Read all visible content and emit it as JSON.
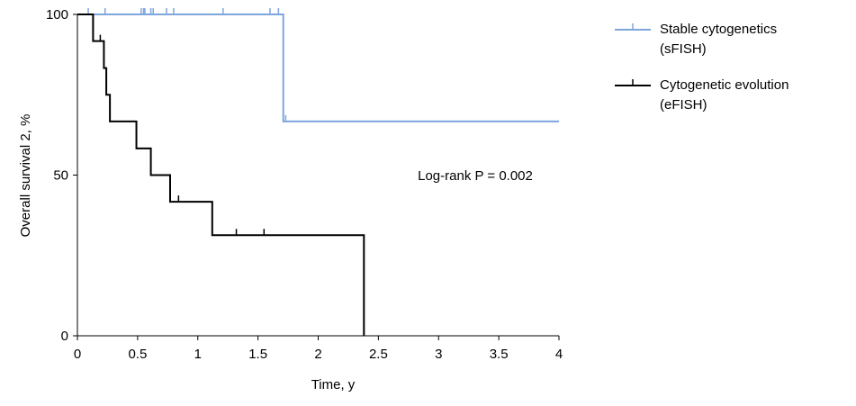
{
  "chart_data": {
    "type": "step",
    "xlabel": "Time, y",
    "ylabel": "Overall survival 2, %",
    "annotation": "Log-rank P = 0.002",
    "xlim": [
      0,
      4
    ],
    "xticks": [
      0,
      0.5,
      1,
      1.5,
      2,
      2.5,
      3,
      3.5,
      4
    ],
    "ylim": [
      0,
      100
    ],
    "yticks": [
      0,
      50,
      100
    ],
    "series": [
      {
        "name": "Stable cytogenetics (sFISH)",
        "color": "#7ea6dc",
        "x": [
          0,
          1.71,
          4
        ],
        "values": [
          100,
          66.7,
          66.7
        ],
        "censor_x": [
          0.09,
          0.23,
          0.53,
          0.55,
          0.56,
          0.61,
          0.63,
          0.74,
          0.8,
          1.21,
          1.6,
          1.67,
          1.73
        ],
        "censor_values": [
          100,
          100,
          100,
          100,
          100,
          100,
          100,
          100,
          100,
          100,
          100,
          100,
          66.7
        ]
      },
      {
        "name": "Cytogenetic evolution (eFISH)",
        "color": "#000000",
        "x": [
          0,
          0.13,
          0.22,
          0.24,
          0.27,
          0.49,
          0.61,
          0.77,
          1.12,
          2.38
        ],
        "values": [
          100,
          91.7,
          83.3,
          75,
          66.7,
          58.3,
          50,
          41.7,
          31.3,
          0
        ],
        "censor_x": [
          0.19,
          0.84,
          1.32,
          1.55
        ],
        "censor_values": [
          91.7,
          41.7,
          31.3,
          31.3
        ]
      }
    ]
  }
}
